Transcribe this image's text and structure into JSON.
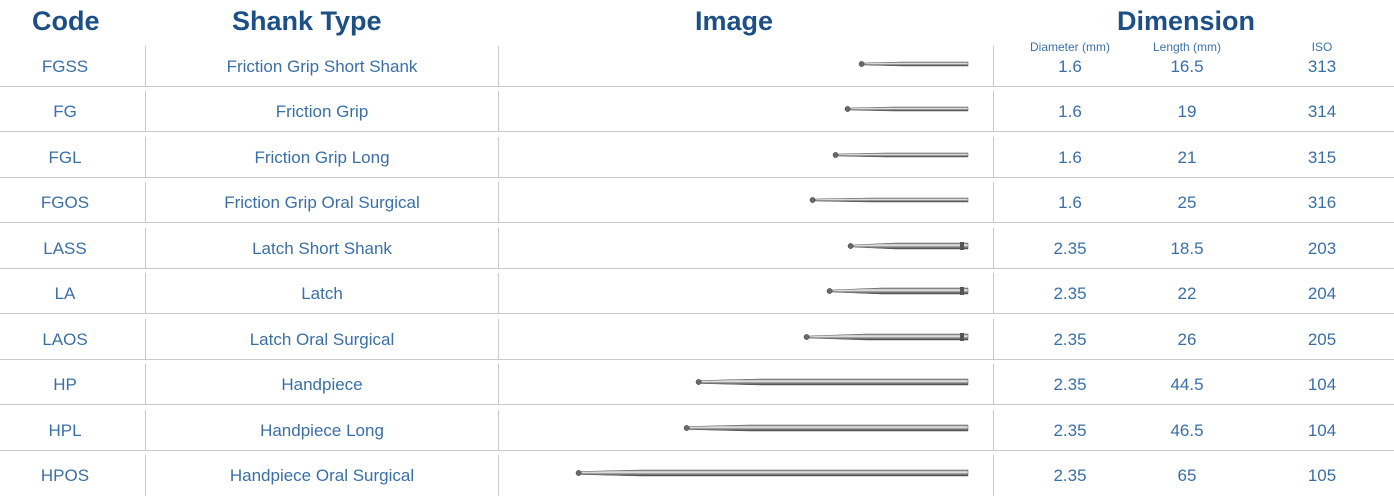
{
  "headers": {
    "code": "Code",
    "shank_type": "Shank Type",
    "image": "Image",
    "dimension": "Dimension",
    "diameter": "Diameter (mm)",
    "length": "Length (mm)",
    "iso": "ISO"
  },
  "colors": {
    "header": "#1c4f86",
    "text": "#3a6fa6",
    "grid": "#c9c9c9"
  },
  "rows": [
    {
      "code": "FGSS",
      "shank": "Friction Grip Short Shank",
      "diameter": "1.6",
      "length": "16.5",
      "iso": "313",
      "shank_kind": "friction-grip"
    },
    {
      "code": "FG",
      "shank": "Friction Grip",
      "diameter": "1.6",
      "length": "19",
      "iso": "314",
      "shank_kind": "friction-grip"
    },
    {
      "code": "FGL",
      "shank": "Friction Grip Long",
      "diameter": "1.6",
      "length": "21",
      "iso": "315",
      "shank_kind": "friction-grip"
    },
    {
      "code": "FGOS",
      "shank": "Friction Grip Oral Surgical",
      "diameter": "1.6",
      "length": "25",
      "iso": "316",
      "shank_kind": "friction-grip"
    },
    {
      "code": "LASS",
      "shank": "Latch Short Shank",
      "diameter": "2.35",
      "length": "18.5",
      "iso": "203",
      "shank_kind": "latch"
    },
    {
      "code": "LA",
      "shank": "Latch",
      "diameter": "2.35",
      "length": "22",
      "iso": "204",
      "shank_kind": "latch"
    },
    {
      "code": "LAOS",
      "shank": "Latch Oral Surgical",
      "diameter": "2.35",
      "length": "26",
      "iso": "205",
      "shank_kind": "latch"
    },
    {
      "code": "HP",
      "shank": "Handpiece",
      "diameter": "2.35",
      "length": "44.5",
      "iso": "104",
      "shank_kind": "handpiece"
    },
    {
      "code": "HPL",
      "shank": "Handpiece Long",
      "diameter": "2.35",
      "length": "46.5",
      "iso": "104",
      "shank_kind": "handpiece"
    },
    {
      "code": "HPOS",
      "shank": "Handpiece Oral Surgical",
      "diameter": "2.35",
      "length": "65",
      "iso": "105",
      "shank_kind": "handpiece"
    }
  ]
}
